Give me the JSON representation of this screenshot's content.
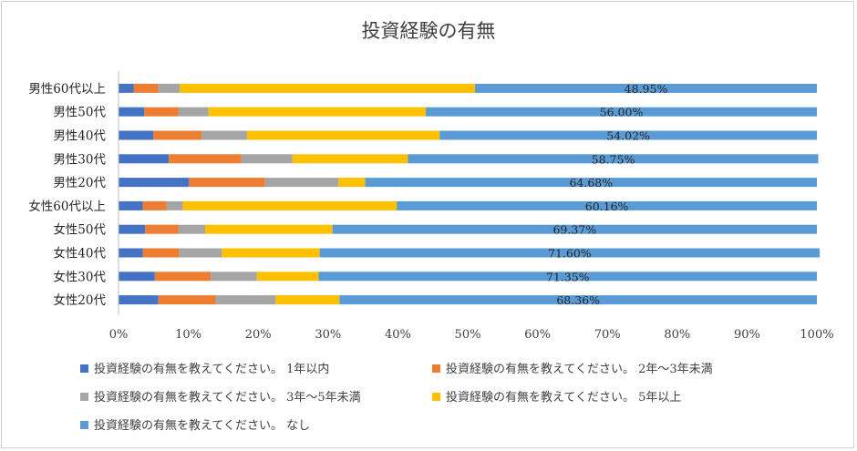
{
  "chart_data": {
    "type": "bar",
    "orientation": "horizontal",
    "stacked": "percent",
    "title": "投資経験の有無",
    "categories": [
      "男性60代以上",
      "男性50代",
      "男性40代",
      "男性30代",
      "男性20代",
      "女性60代以上",
      "女性50代",
      "女性40代",
      "女性30代",
      "女性20代"
    ],
    "xlim": [
      0,
      100
    ],
    "x_ticks": [
      "0%",
      "10%",
      "20%",
      "30%",
      "40%",
      "50%",
      "60%",
      "70%",
      "80%",
      "90%",
      "100%"
    ],
    "grid": false,
    "legend_position": "bottom",
    "series": [
      {
        "name": "投資経験の有無を教えてください。 1年以内",
        "color": "#4472C4",
        "values": [
          2.2,
          3.7,
          5.0,
          7.2,
          10.1,
          3.5,
          3.8,
          3.5,
          5.2,
          5.7
        ]
      },
      {
        "name": "投資経験の有無を教えてください。 2年～3年未満",
        "color": "#ED7D31",
        "values": [
          3.5,
          4.9,
          6.9,
          10.4,
          10.9,
          3.4,
          4.8,
          5.2,
          8.0,
          8.2
        ]
      },
      {
        "name": "投資経験の有無を教えてください。 3年～5年未満",
        "color": "#A5A5A5",
        "values": [
          3.1,
          4.3,
          6.5,
          7.3,
          10.5,
          2.3,
          3.8,
          6.1,
          6.6,
          8.6
        ]
      },
      {
        "name": "投資経験の有無を教えてください。 5年以上",
        "color": "#FFC000",
        "values": [
          42.25,
          31.1,
          27.58,
          16.55,
          3.82,
          30.64,
          18.23,
          14.0,
          8.85,
          9.14
        ]
      },
      {
        "name": "投資経験の有無を教えてください。 なし",
        "color": "#5B9BD5",
        "values": [
          48.95,
          56.0,
          54.02,
          58.75,
          64.68,
          60.16,
          69.37,
          71.6,
          71.35,
          68.36
        ]
      }
    ],
    "data_labels": {
      "series": "投資経験の有無を教えてください。 なし",
      "labels": [
        "48.95%",
        "56.00%",
        "54.02%",
        "58.75%",
        "64.68%",
        "60.16%",
        "69.37%",
        "71.60%",
        "71.35%",
        "68.36%"
      ]
    }
  }
}
